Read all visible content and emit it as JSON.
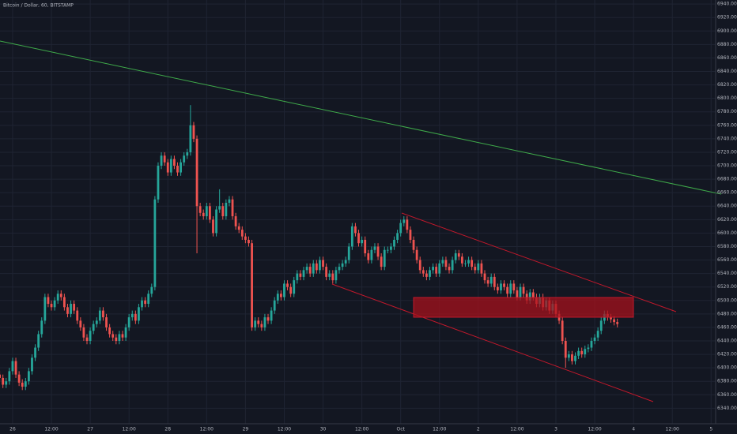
{
  "chart_data": {
    "type": "candlestick",
    "title": "Bitcoin / Dollar, 60, BITSTAMP",
    "up_color": "#26a69a",
    "down_color": "#ef5350",
    "grid": true,
    "xlim": [
      -3.9,
      217.4
    ],
    "ylim": [
      6317,
      6946
    ],
    "xticks": [
      {
        "value": 0,
        "label": "26"
      },
      {
        "value": 12,
        "label": "12:00"
      },
      {
        "value": 24,
        "label": "27"
      },
      {
        "value": 36,
        "label": "12:00"
      },
      {
        "value": 48,
        "label": "28"
      },
      {
        "value": 60,
        "label": "12:00"
      },
      {
        "value": 72,
        "label": "29"
      },
      {
        "value": 84,
        "label": "12:00"
      },
      {
        "value": 96,
        "label": "30"
      },
      {
        "value": 108,
        "label": "12:00"
      },
      {
        "value": 120,
        "label": "Oct"
      },
      {
        "value": 132,
        "label": "12:00"
      },
      {
        "value": 144,
        "label": "2"
      },
      {
        "value": 156,
        "label": "12:00"
      },
      {
        "value": 168,
        "label": "3"
      },
      {
        "value": 180,
        "label": "12:00"
      },
      {
        "value": 192,
        "label": "4"
      },
      {
        "value": 204,
        "label": "12:00"
      },
      {
        "value": 216,
        "label": "5"
      }
    ],
    "yticks": [
      {
        "value": 6340,
        "label": "6340.00"
      },
      {
        "value": 6360,
        "label": "6360.00"
      },
      {
        "value": 6380,
        "label": "6380.00"
      },
      {
        "value": 6400,
        "label": "6400.00"
      },
      {
        "value": 6420,
        "label": "6420.00"
      },
      {
        "value": 6440,
        "label": "6440.00"
      },
      {
        "value": 6460,
        "label": "6460.00"
      },
      {
        "value": 6480,
        "label": "6480.00"
      },
      {
        "value": 6500,
        "label": "6500.00"
      },
      {
        "value": 6520,
        "label": "6520.00"
      },
      {
        "value": 6540,
        "label": "6540.00"
      },
      {
        "value": 6560,
        "label": "6560.00"
      },
      {
        "value": 6580,
        "label": "6580.00"
      },
      {
        "value": 6600,
        "label": "6600.00"
      },
      {
        "value": 6620,
        "label": "6620.00"
      },
      {
        "value": 6640,
        "label": "6640.00"
      },
      {
        "value": 6660,
        "label": "6660.00"
      },
      {
        "value": 6680,
        "label": "6680.00"
      },
      {
        "value": 6700,
        "label": "6700.00"
      },
      {
        "value": 6720,
        "label": "6720.00"
      },
      {
        "value": 6740,
        "label": "6740.00"
      },
      {
        "value": 6760,
        "label": "6760.00"
      },
      {
        "value": 6780,
        "label": "6780.00"
      },
      {
        "value": 6800,
        "label": "6800.00"
      },
      {
        "value": 6820,
        "label": "6820.00"
      },
      {
        "value": 6840,
        "label": "6840.00"
      },
      {
        "value": 6860,
        "label": "6860.00"
      },
      {
        "value": 6880,
        "label": "6880.00"
      },
      {
        "value": 6900,
        "label": "6900.00"
      },
      {
        "value": 6920,
        "label": "6920.00"
      },
      {
        "value": 6940,
        "label": "6940.00"
      }
    ],
    "x": [
      -4,
      -3,
      -2,
      -1,
      0,
      1,
      2,
      3,
      4,
      5,
      6,
      7,
      8,
      9,
      10,
      11,
      12,
      13,
      14,
      15,
      16,
      17,
      18,
      19,
      20,
      21,
      22,
      23,
      24,
      25,
      26,
      27,
      28,
      29,
      30,
      31,
      32,
      33,
      34,
      35,
      36,
      37,
      38,
      39,
      40,
      41,
      42,
      43,
      44,
      45,
      46,
      47,
      48,
      49,
      50,
      51,
      52,
      53,
      54,
      55,
      56,
      57,
      58,
      59,
      60,
      61,
      62,
      63,
      64,
      65,
      66,
      67,
      68,
      69,
      70,
      71,
      72,
      73,
      74,
      75,
      76,
      77,
      78,
      79,
      80,
      81,
      82,
      83,
      84,
      85,
      86,
      87,
      88,
      89,
      90,
      91,
      92,
      93,
      94,
      95,
      96,
      97,
      98,
      99,
      100,
      101,
      102,
      103,
      104,
      105,
      106,
      107,
      108,
      109,
      110,
      111,
      112,
      113,
      114,
      115,
      116,
      117,
      118,
      119,
      120,
      121,
      122,
      123,
      124,
      125,
      126,
      127,
      128,
      129,
      130,
      131,
      132,
      133,
      134,
      135,
      136,
      137,
      138,
      139,
      140,
      141,
      142,
      143,
      144,
      145,
      146,
      147,
      148,
      149,
      150,
      151,
      152,
      153,
      154,
      155,
      156,
      157,
      158,
      159,
      160,
      161,
      162,
      163,
      164,
      165,
      166,
      167,
      168,
      169,
      170,
      171,
      172,
      173,
      174,
      175,
      176,
      177,
      178,
      179,
      180,
      181,
      182,
      183,
      184,
      185,
      186,
      187
    ],
    "open": [
      6390,
      6385,
      6375,
      6380,
      6395,
      6410,
      6390,
      6378,
      6372,
      6380,
      6395,
      6415,
      6430,
      6450,
      6470,
      6505,
      6495,
      6490,
      6500,
      6510,
      6505,
      6490,
      6480,
      6495,
      6485,
      6470,
      6460,
      6445,
      6440,
      6455,
      6465,
      6470,
      6485,
      6475,
      6460,
      6450,
      6445,
      6440,
      6450,
      6445,
      6460,
      6475,
      6480,
      6470,
      6490,
      6500,
      6495,
      6510,
      6520,
      6650,
      6700,
      6715,
      6705,
      6690,
      6710,
      6700,
      6690,
      6705,
      6715,
      6720,
      6760,
      6740,
      6640,
      6630,
      6625,
      6640,
      6620,
      6600,
      6635,
      6640,
      6625,
      6645,
      6650,
      6625,
      6610,
      6605,
      6595,
      6590,
      6585,
      6460,
      6470,
      6465,
      6460,
      6475,
      6470,
      6485,
      6500,
      6510,
      6505,
      6525,
      6520,
      6510,
      6530,
      6540,
      6535,
      6545,
      6550,
      6540,
      6555,
      6545,
      6560,
      6550,
      6535,
      6540,
      6530,
      6545,
      6550,
      6555,
      6560,
      6580,
      6610,
      6600,
      6585,
      6590,
      6570,
      6560,
      6575,
      6580,
      6565,
      6550,
      6575,
      6575,
      6580,
      6590,
      6600,
      6615,
      6620,
      6605,
      6590,
      6575,
      6560,
      6545,
      6540,
      6535,
      6545,
      6550,
      6540,
      6555,
      6560,
      6550,
      6545,
      6560,
      6570,
      6565,
      6555,
      6555,
      6560,
      6550,
      6545,
      6555,
      6540,
      6530,
      6525,
      6535,
      6520,
      6515,
      6525,
      6520,
      6510,
      6525,
      6515,
      6505,
      6520,
      6510,
      6500,
      6512,
      6505,
      6495,
      6505,
      6490,
      6500,
      6485,
      6495,
      6480,
      6470,
      6440,
      6415,
      6420,
      6410,
      6418,
      6425,
      6420,
      6428,
      6430,
      6440,
      6445,
      6455,
      6470,
      6480,
      6475,
      6472,
      6468
    ],
    "high": [
      6395,
      6390,
      6385,
      6400,
      6415,
      6415,
      6395,
      6383,
      6385,
      6400,
      6420,
      6435,
      6455,
      6475,
      6510,
      6510,
      6500,
      6505,
      6515,
      6515,
      6510,
      6495,
      6500,
      6500,
      6490,
      6475,
      6465,
      6450,
      6460,
      6470,
      6475,
      6490,
      6490,
      6480,
      6465,
      6455,
      6450,
      6455,
      6455,
      6465,
      6480,
      6485,
      6485,
      6495,
      6505,
      6505,
      6515,
      6525,
      6655,
      6705,
      6720,
      6720,
      6710,
      6715,
      6715,
      6705,
      6710,
      6720,
      6725,
      6790,
      6765,
      6745,
      6645,
      6635,
      6645,
      6645,
      6625,
      6640,
      6665,
      6645,
      6650,
      6655,
      6655,
      6630,
      6615,
      6610,
      6600,
      6595,
      6590,
      6475,
      6475,
      6470,
      6480,
      6480,
      6490,
      6505,
      6515,
      6515,
      6530,
      6530,
      6525,
      6535,
      6545,
      6545,
      6550,
      6555,
      6555,
      6560,
      6560,
      6565,
      6565,
      6555,
      6545,
      6545,
      6550,
      6555,
      6560,
      6565,
      6585,
      6615,
      6615,
      6605,
      6595,
      6595,
      6575,
      6580,
      6585,
      6585,
      6570,
      6580,
      6580,
      6585,
      6595,
      6605,
      6620,
      6625,
      6625,
      6610,
      6595,
      6580,
      6565,
      6550,
      6545,
      6550,
      6555,
      6555,
      6560,
      6565,
      6565,
      6555,
      6565,
      6575,
      6575,
      6570,
      6560,
      6565,
      6565,
      6555,
      6560,
      6560,
      6545,
      6535,
      6540,
      6540,
      6525,
      6530,
      6530,
      6525,
      6530,
      6530,
      6520,
      6525,
      6525,
      6515,
      6517,
      6517,
      6510,
      6510,
      6510,
      6505,
      6505,
      6500,
      6500,
      6485,
      6475,
      6445,
      6425,
      6425,
      6423,
      6430,
      6430,
      6433,
      6435,
      6445,
      6450,
      6460,
      6475,
      6485,
      6485,
      6480,
      6477,
      6473
    ],
    "low": [
      6380,
      6370,
      6370,
      6375,
      6390,
      6385,
      6373,
      6367,
      6367,
      6375,
      6390,
      6410,
      6425,
      6445,
      6465,
      6490,
      6485,
      6485,
      6495,
      6500,
      6485,
      6475,
      6475,
      6480,
      6465,
      6455,
      6440,
      6435,
      6435,
      6450,
      6460,
      6465,
      6470,
      6455,
      6445,
      6440,
      6435,
      6435,
      6440,
      6440,
      6455,
      6470,
      6465,
      6465,
      6485,
      6490,
      6490,
      6505,
      6515,
      6645,
      6695,
      6700,
      6685,
      6685,
      6695,
      6685,
      6685,
      6700,
      6710,
      6715,
      6735,
      6570,
      6625,
      6620,
      6620,
      6615,
      6595,
      6595,
      6630,
      6620,
      6620,
      6640,
      6620,
      6605,
      6600,
      6590,
      6585,
      6580,
      6455,
      6455,
      6460,
      6455,
      6455,
      6465,
      6465,
      6480,
      6495,
      6500,
      6500,
      6515,
      6505,
      6505,
      6525,
      6530,
      6530,
      6540,
      6535,
      6535,
      6540,
      6540,
      6545,
      6530,
      6530,
      6525,
      6525,
      6540,
      6545,
      6550,
      6555,
      6575,
      6595,
      6580,
      6580,
      6565,
      6555,
      6555,
      6570,
      6560,
      6545,
      6545,
      6570,
      6570,
      6575,
      6585,
      6595,
      6610,
      6600,
      6585,
      6570,
      6555,
      6540,
      6535,
      6530,
      6530,
      6540,
      6535,
      6535,
      6550,
      6545,
      6540,
      6540,
      6555,
      6560,
      6550,
      6550,
      6550,
      6545,
      6540,
      6540,
      6535,
      6525,
      6520,
      6520,
      6515,
      6510,
      6510,
      6515,
      6505,
      6505,
      6510,
      6500,
      6500,
      6505,
      6495,
      6495,
      6500,
      6490,
      6490,
      6485,
      6485,
      6480,
      6480,
      6475,
      6465,
      6435,
      6400,
      6410,
      6405,
      6405,
      6413,
      6415,
      6415,
      6423,
      6425,
      6435,
      6440,
      6450,
      6465,
      6470,
      6467,
      6463,
      6460
    ],
    "close": [
      6385,
      6375,
      6380,
      6395,
      6410,
      6390,
      6378,
      6372,
      6380,
      6395,
      6415,
      6430,
      6450,
      6470,
      6505,
      6495,
      6490,
      6500,
      6510,
      6505,
      6490,
      6480,
      6495,
      6485,
      6470,
      6460,
      6445,
      6440,
      6455,
      6465,
      6470,
      6485,
      6475,
      6460,
      6450,
      6445,
      6440,
      6450,
      6445,
      6460,
      6475,
      6480,
      6470,
      6490,
      6500,
      6495,
      6510,
      6520,
      6650,
      6700,
      6715,
      6705,
      6690,
      6710,
      6700,
      6690,
      6705,
      6715,
      6720,
      6760,
      6740,
      6640,
      6630,
      6625,
      6640,
      6620,
      6600,
      6635,
      6640,
      6625,
      6645,
      6650,
      6625,
      6610,
      6605,
      6595,
      6590,
      6585,
      6460,
      6470,
      6465,
      6460,
      6475,
      6470,
      6485,
      6500,
      6510,
      6505,
      6525,
      6520,
      6510,
      6530,
      6540,
      6535,
      6545,
      6550,
      6540,
      6555,
      6545,
      6560,
      6550,
      6535,
      6540,
      6530,
      6545,
      6550,
      6555,
      6560,
      6580,
      6610,
      6600,
      6585,
      6590,
      6570,
      6560,
      6575,
      6580,
      6565,
      6550,
      6575,
      6575,
      6580,
      6590,
      6600,
      6615,
      6620,
      6605,
      6590,
      6575,
      6560,
      6545,
      6540,
      6535,
      6545,
      6550,
      6540,
      6555,
      6560,
      6550,
      6545,
      6560,
      6570,
      6565,
      6555,
      6555,
      6560,
      6550,
      6545,
      6555,
      6540,
      6530,
      6525,
      6535,
      6520,
      6515,
      6525,
      6520,
      6510,
      6525,
      6515,
      6505,
      6520,
      6510,
      6500,
      6512,
      6505,
      6495,
      6505,
      6490,
      6500,
      6485,
      6495,
      6480,
      6470,
      6440,
      6415,
      6420,
      6410,
      6418,
      6425,
      6420,
      6428,
      6430,
      6440,
      6445,
      6455,
      6470,
      6480,
      6475,
      6472,
      6468,
      6465
    ]
  }
}
